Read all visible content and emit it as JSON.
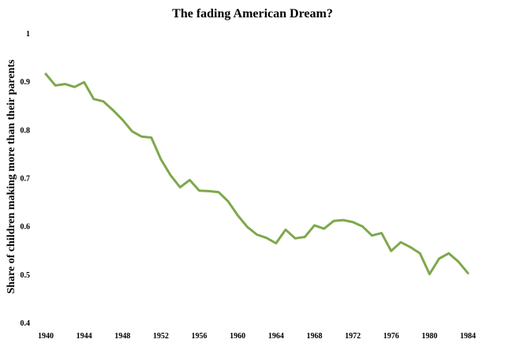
{
  "chart_data": {
    "type": "line",
    "title": "The fading American Dream?",
    "xlabel": "",
    "ylabel": "Share of children making more than their parents",
    "xlim": [
      1940,
      1984
    ],
    "ylim": [
      0.4,
      1.0
    ],
    "x_ticks": [
      "1940",
      "1944",
      "1948",
      "1952",
      "1956",
      "1960",
      "1964",
      "1968",
      "1972",
      "1976",
      "1980",
      "1984"
    ],
    "y_ticks": [
      "0.4",
      "0.5",
      "0.6",
      "0.7",
      "0.8",
      "0.9",
      "1"
    ],
    "grid": false,
    "legend": "none",
    "series": [
      {
        "color": "#7ea84b",
        "x": [
          1940,
          1941,
          1942,
          1943,
          1944,
          1945,
          1946,
          1947,
          1948,
          1949,
          1950,
          1951,
          1952,
          1953,
          1954,
          1955,
          1956,
          1957,
          1958,
          1959,
          1960,
          1961,
          1962,
          1963,
          1964,
          1965,
          1966,
          1967,
          1968,
          1969,
          1970,
          1971,
          1972,
          1973,
          1974,
          1975,
          1976,
          1977,
          1978,
          1979,
          1980,
          1981,
          1982,
          1983,
          1984
        ],
        "values": [
          0.917,
          0.893,
          0.896,
          0.89,
          0.9,
          0.865,
          0.86,
          0.842,
          0.822,
          0.798,
          0.787,
          0.785,
          0.74,
          0.707,
          0.682,
          0.697,
          0.675,
          0.674,
          0.672,
          0.653,
          0.624,
          0.6,
          0.584,
          0.577,
          0.566,
          0.594,
          0.576,
          0.579,
          0.603,
          0.596,
          0.612,
          0.614,
          0.61,
          0.601,
          0.582,
          0.587,
          0.55,
          0.568,
          0.558,
          0.545,
          0.502,
          0.534,
          0.545,
          0.528,
          0.504
        ]
      }
    ]
  }
}
